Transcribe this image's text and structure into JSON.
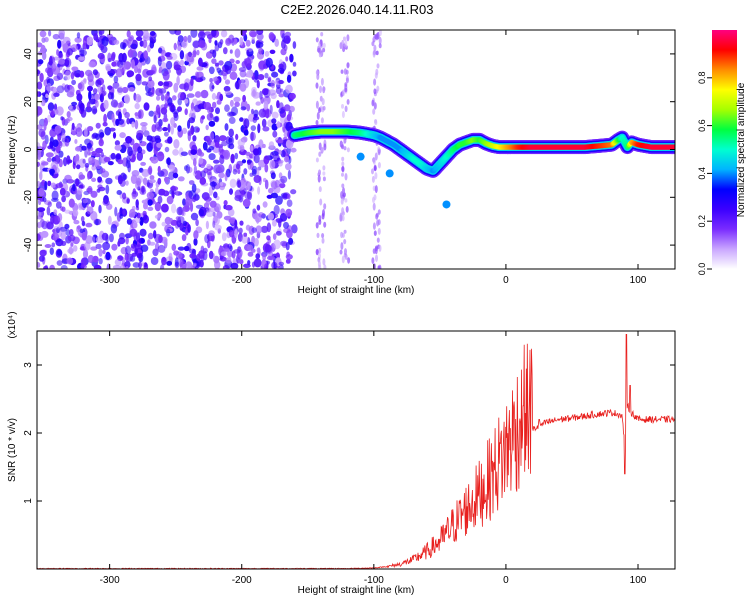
{
  "title": "C2E2.2026.040.14.11.R03",
  "chart_data": [
    {
      "type": "heatmap",
      "name": "spectrogram",
      "xlabel": "Height of straight line (km)",
      "ylabel": "Frequency (Hz)",
      "xlim": [
        -355,
        128
      ],
      "ylim": [
        -50,
        50
      ],
      "x_ticks": [
        -300,
        -200,
        -100,
        0,
        100
      ],
      "x_tick_labels": [
        "-300",
        "-200",
        "-100",
        "0",
        "100"
      ],
      "y_ticks": [
        -40,
        -20,
        0,
        20,
        40
      ],
      "y_tick_labels": [
        "-40",
        "-20",
        "0",
        "20",
        "40"
      ],
      "colorbar": {
        "label": "Normalized spectral amplitude",
        "range": [
          0,
          1
        ],
        "ticks": [
          0.0,
          0.2,
          0.4,
          0.6,
          0.8
        ],
        "tick_labels": [
          "0.0",
          "0.2",
          "0.4",
          "0.6",
          "0.8"
        ],
        "colors": [
          "#ffffff",
          "#c9a6ff",
          "#7a2cff",
          "#3b00ff",
          "#0000ff",
          "#00b4ff",
          "#00ffd0",
          "#00ff40",
          "#a6ff00",
          "#ffff00",
          "#ff8c00",
          "#ff0000",
          "#ff0080"
        ]
      },
      "noise_region_x": [
        -355,
        -160
      ],
      "faint_streaks_x": [
        -140,
        -122,
        -98
      ],
      "ridge": {
        "x": [
          -160,
          -150,
          -140,
          -130,
          -120,
          -110,
          -100,
          -95,
          -90,
          -85,
          -80,
          -75,
          -70,
          -65,
          -60,
          -55,
          -50,
          -45,
          -40,
          -35,
          -30,
          -25,
          -20,
          -15,
          -10,
          -5,
          0,
          10,
          20,
          30,
          40,
          50,
          60,
          70,
          80,
          85,
          88,
          92,
          95,
          100,
          110,
          120,
          128
        ],
        "y": [
          6,
          7,
          7.5,
          7.5,
          7.5,
          7,
          6,
          5,
          3.5,
          2,
          0,
          -2,
          -4,
          -6,
          -8,
          -9,
          -6,
          -3,
          0,
          2,
          3,
          4,
          4,
          2.5,
          1.5,
          1,
          1,
          1,
          1,
          1,
          1,
          1,
          1,
          1.5,
          2,
          4,
          5,
          1,
          3,
          2,
          1,
          1,
          1
        ],
        "amplitude": [
          0.55,
          0.6,
          0.65,
          0.65,
          0.6,
          0.55,
          0.45,
          0.4,
          0.4,
          0.4,
          0.4,
          0.45,
          0.5,
          0.5,
          0.45,
          0.4,
          0.45,
          0.5,
          0.55,
          0.6,
          0.6,
          0.65,
          0.6,
          0.65,
          0.7,
          0.75,
          0.8,
          0.9,
          0.95,
          0.95,
          0.95,
          0.95,
          0.95,
          0.9,
          0.85,
          0.6,
          0.5,
          0.55,
          0.8,
          0.9,
          0.95,
          0.95,
          0.95
        ]
      }
    },
    {
      "type": "line",
      "name": "snr",
      "xlabel": "Height of straight line (km)",
      "ylabel": "SNR (10 * v/v)",
      "y_multiplier_label": "(x10⁴)",
      "xlim": [
        -355,
        128
      ],
      "ylim": [
        0,
        3.5
      ],
      "x_ticks": [
        -300,
        -200,
        -100,
        0,
        100
      ],
      "x_tick_labels": [
        "-300",
        "-200",
        "-100",
        "0",
        "100"
      ],
      "y_ticks": [
        1,
        2,
        3
      ],
      "y_tick_labels": [
        "1",
        "2",
        "3"
      ],
      "color": "#e8201e",
      "envelope": {
        "x": [
          -355,
          -120,
          -100,
          -90,
          -80,
          -70,
          -60,
          -50,
          -40,
          -30,
          -20,
          -10,
          0,
          10,
          20,
          30,
          40,
          50,
          60,
          70,
          80,
          85,
          88,
          90,
          92,
          95,
          100,
          110,
          120,
          128
        ],
        "y": [
          0.0,
          0.0,
          0.01,
          0.03,
          0.06,
          0.12,
          0.22,
          0.35,
          0.55,
          0.75,
          0.95,
          1.2,
          1.5,
          1.85,
          2.05,
          2.15,
          2.2,
          2.22,
          2.25,
          2.28,
          2.3,
          2.28,
          2.25,
          1.8,
          2.4,
          2.3,
          2.2,
          2.2,
          2.2,
          2.2
        ]
      },
      "spikes": [
        {
          "x": 91,
          "y": 3.45
        },
        {
          "x": 94,
          "y": 2.7
        },
        {
          "x": 90,
          "y": 1.4
        },
        {
          "x": 13,
          "y": 2.4
        },
        {
          "x": 25,
          "y": 2.2
        }
      ]
    }
  ]
}
